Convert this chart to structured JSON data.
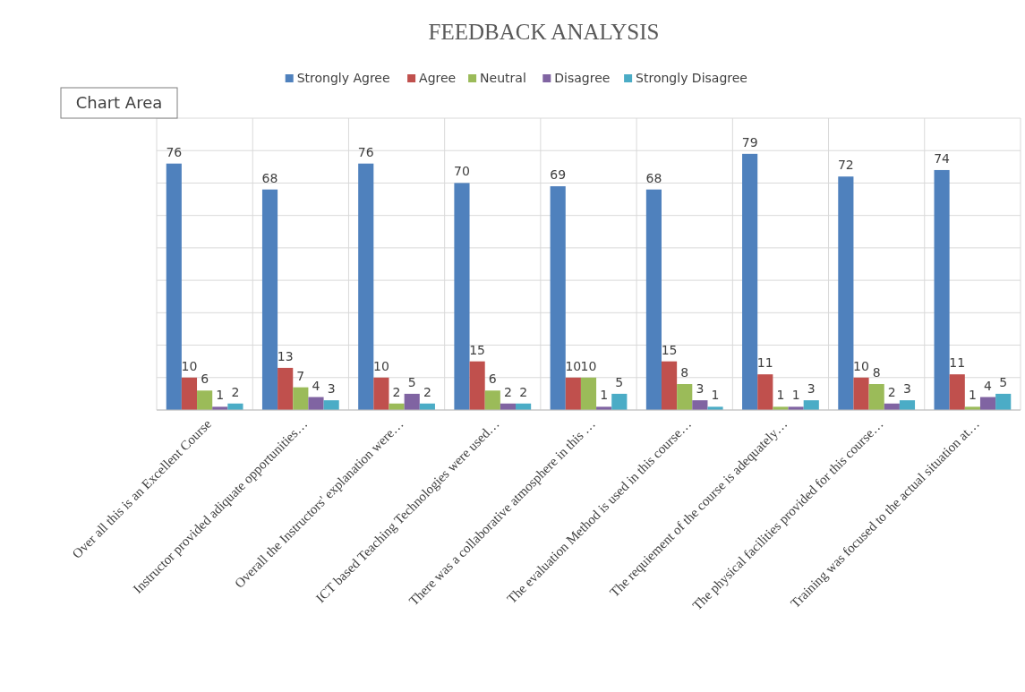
{
  "chart_data": {
    "type": "bar",
    "title": "FEEDBACK ANALYSIS",
    "categories": [
      "Over all this is an Excellent Course",
      "Instructor provided adiquate opportunities…",
      "Overall the Instructors' explanation were…",
      "ICT based Teaching Technologies were used…",
      "There was a collaborative atmosphere in this …",
      "The evaluation Method is used in this course…",
      "The requiement of the course is adequately…",
      "The physical facilities provided for this course…",
      "Training was focused to the actual situation at…"
    ],
    "series": [
      {
        "name": "Strongly Agree",
        "color": "#4f81bd",
        "values": [
          76,
          68,
          76,
          70,
          69,
          68,
          79,
          72,
          74
        ]
      },
      {
        "name": "Agree",
        "color": "#c0504d",
        "values": [
          10,
          13,
          10,
          15,
          10,
          15,
          11,
          10,
          11
        ]
      },
      {
        "name": "Neutral",
        "color": "#9bbb59",
        "values": [
          6,
          7,
          2,
          6,
          10,
          8,
          1,
          8,
          1
        ]
      },
      {
        "name": "Disagree",
        "color": "#8064a2",
        "values": [
          1,
          4,
          5,
          2,
          1,
          3,
          1,
          2,
          4
        ]
      },
      {
        "name": "Strongly Disagree",
        "color": "#4bacc6",
        "values": [
          2,
          3,
          2,
          2,
          5,
          1,
          3,
          3,
          5
        ]
      }
    ],
    "ylim": [
      0,
      90
    ],
    "yticks": [
      {
        "value": 0,
        "label": null
      },
      {
        "value": 10,
        "label": null
      },
      {
        "value": 20,
        "label": null
      },
      {
        "value": 30,
        "label": null
      },
      {
        "value": 40,
        "label": null
      },
      {
        "value": 50,
        "label": null
      },
      {
        "value": 60,
        "label": null
      },
      {
        "value": 70,
        "label": null
      },
      {
        "value": 80,
        "label": null
      },
      {
        "value": 90,
        "label": null
      }
    ],
    "tick_labels": "x",
    "grid": true,
    "legend": "top",
    "data_labels": true,
    "annotations": [
      "Chart Area"
    ]
  }
}
